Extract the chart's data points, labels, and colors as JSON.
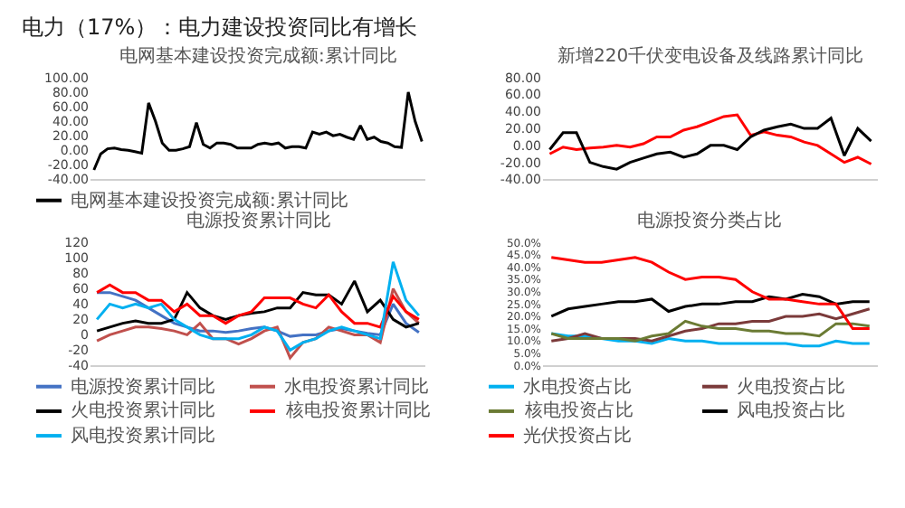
{
  "chart_data": [
    {
      "type": "line",
      "title": "电网基本建设投资完成额:累计同比",
      "annotations": [
        "电力（17%）：电力建设投资同比有增长"
      ],
      "categories": [
        null,
        null,
        null,
        null,
        null,
        null,
        null,
        null,
        null,
        null,
        null,
        null,
        null,
        null,
        null,
        null,
        null,
        null,
        null,
        null,
        null,
        null,
        null,
        null,
        null,
        null,
        null,
        null,
        null,
        null,
        null,
        null,
        null,
        null,
        null,
        null,
        null,
        null,
        null,
        null,
        null,
        null,
        null,
        null,
        null,
        null,
        null,
        null,
        null
      ],
      "series": [
        {
          "name": "电网基本建设投资完成额:累计同比",
          "color": "#000000",
          "values": [
            -27,
            -5,
            2,
            3,
            1,
            0,
            -2,
            -4,
            65,
            40,
            10,
            0,
            0,
            2,
            5,
            38,
            8,
            3,
            10,
            10,
            8,
            3,
            3,
            3,
            8,
            10,
            8,
            10,
            3,
            5,
            5,
            3,
            25,
            22,
            25,
            20,
            22,
            18,
            15,
            34,
            15,
            18,
            12,
            10,
            5,
            4,
            80,
            40,
            12
          ]
        }
      ],
      "ylim": [
        -40,
        100
      ],
      "yticks": [
        {
          "value": -40,
          "label": "-40.00"
        },
        {
          "value": -20,
          "label": "-20.00"
        },
        {
          "value": 0,
          "label": "0.00"
        },
        {
          "value": 20,
          "label": "20.00"
        },
        {
          "value": 40,
          "label": "40.00"
        },
        {
          "value": 60,
          "label": "60.00"
        },
        {
          "value": 80,
          "label": "80.00"
        },
        {
          "value": 100,
          "label": "100.00"
        }
      ],
      "tick_labels": "y",
      "legend": "bottom"
    },
    {
      "type": "line",
      "title": "新增220千伏变电设备及线路累计同比",
      "categories": [
        null,
        null,
        null,
        null,
        null,
        null,
        null,
        null,
        null,
        null,
        null,
        null,
        null,
        null,
        null,
        null,
        null,
        null,
        null,
        null,
        null,
        null,
        null,
        null,
        null
      ],
      "series": [
        {
          "color": "#ff0000",
          "values": [
            -10,
            -2,
            -5,
            -3,
            -2,
            0,
            -2,
            2,
            10,
            10,
            18,
            22,
            28,
            34,
            36,
            12,
            16,
            12,
            10,
            4,
            0,
            -10,
            -20,
            -14,
            -22
          ]
        },
        {
          "color": "#000000",
          "values": [
            -5,
            15,
            15,
            -20,
            -25,
            -28,
            -20,
            -15,
            -10,
            -8,
            -14,
            -10,
            0,
            0,
            -5,
            10,
            18,
            22,
            25,
            20,
            20,
            32,
            -12,
            20,
            5
          ]
        }
      ],
      "ylim": [
        -40,
        80
      ],
      "yticks": [
        {
          "value": -40,
          "label": "-40.00"
        },
        {
          "value": -20,
          "label": "-20.00"
        },
        {
          "value": 0,
          "label": "0.00"
        },
        {
          "value": 20,
          "label": "20.00"
        },
        {
          "value": 40,
          "label": "40.00"
        },
        {
          "value": 60,
          "label": "60.00"
        },
        {
          "value": 80,
          "label": "80.00"
        }
      ],
      "tick_labels": "y"
    },
    {
      "type": "line",
      "title": "电源投资累计同比",
      "categories": [
        null,
        null,
        null,
        null,
        null,
        null,
        null,
        null,
        null,
        null,
        null,
        null,
        null,
        null,
        null,
        null,
        null,
        null,
        null,
        null,
        null,
        null,
        null,
        null,
        null,
        null
      ],
      "series": [
        {
          "name": "电源投资累计同比",
          "color": "#4472c4",
          "values": [
            55,
            55,
            50,
            45,
            35,
            25,
            15,
            10,
            5,
            5,
            3,
            5,
            8,
            10,
            5,
            -2,
            0,
            0,
            5,
            8,
            5,
            2,
            0,
            40,
            15,
            3
          ]
        },
        {
          "name": "水电投资累计同比",
          "color": "#c0504d",
          "values": [
            -8,
            0,
            5,
            10,
            10,
            8,
            5,
            0,
            15,
            -5,
            -5,
            -12,
            -5,
            5,
            10,
            -30,
            -10,
            -5,
            10,
            5,
            0,
            0,
            -10,
            60,
            30,
            15
          ]
        },
        {
          "name": "火电投资累计同比",
          "color": "#000000",
          "values": [
            5,
            10,
            15,
            18,
            15,
            15,
            20,
            55,
            35,
            25,
            20,
            25,
            28,
            30,
            35,
            35,
            55,
            52,
            52,
            40,
            70,
            30,
            45,
            20,
            10,
            15
          ]
        },
        {
          "name": "核电投资累计同比",
          "color": "#ff0000",
          "values": [
            55,
            65,
            55,
            55,
            45,
            45,
            30,
            40,
            25,
            25,
            15,
            25,
            30,
            48,
            48,
            48,
            40,
            35,
            52,
            30,
            15,
            15,
            10,
            50,
            30,
            20
          ]
        },
        {
          "name": "风电投资累计同比",
          "color": "#00b0f0",
          "values": [
            20,
            40,
            35,
            40,
            35,
            40,
            20,
            10,
            0,
            -5,
            -5,
            -5,
            0,
            10,
            5,
            -20,
            -10,
            -5,
            5,
            10,
            5,
            0,
            -5,
            95,
            45,
            25
          ]
        }
      ],
      "ylim": [
        -40,
        120
      ],
      "yticks": [
        -40,
        -20,
        0,
        20,
        40,
        60,
        80,
        100,
        120
      ],
      "tick_labels": "y",
      "legend": "bottom"
    },
    {
      "type": "line",
      "title": "电源投资分类占比",
      "categories": [
        null,
        null,
        null,
        null,
        null,
        null,
        null,
        null,
        null,
        null,
        null,
        null,
        null,
        null,
        null,
        null,
        null,
        null,
        null,
        null
      ],
      "series": [
        {
          "name": "水电投资占比",
          "color": "#00b0f0",
          "values": [
            13,
            12,
            12,
            11,
            10,
            10,
            9,
            11,
            10,
            10,
            9,
            9,
            9,
            9,
            9,
            8,
            8,
            10,
            9,
            9
          ]
        },
        {
          "name": "火电投资占比",
          "color": "#7b3a3a",
          "values": [
            10,
            11,
            13,
            11,
            11,
            11,
            10,
            12,
            14,
            15,
            17,
            17,
            18,
            18,
            20,
            20,
            21,
            19,
            21,
            23
          ]
        },
        {
          "name": "核电投资占比",
          "color": "#6b7b34",
          "values": [
            13,
            11,
            11,
            11,
            11,
            10,
            12,
            13,
            18,
            16,
            15,
            15,
            14,
            14,
            13,
            13,
            12,
            17,
            17,
            16
          ]
        },
        {
          "name": "风电投资占比",
          "color": "#000000",
          "values": [
            20,
            23,
            24,
            25,
            26,
            26,
            27,
            22,
            24,
            25,
            25,
            26,
            26,
            28,
            27,
            29,
            28,
            25,
            26,
            26
          ]
        },
        {
          "name": "光伏投资占比",
          "color": "#ff0000",
          "values": [
            44,
            43,
            42,
            42,
            43,
            44,
            42,
            38,
            35,
            36,
            36,
            35,
            30,
            27,
            27,
            26,
            25,
            25,
            15,
            15
          ]
        }
      ],
      "ylim": [
        0,
        50
      ],
      "yticks": [
        {
          "value": 0,
          "label": "0.0%"
        },
        {
          "value": 5,
          "label": "5.0%"
        },
        {
          "value": 10,
          "label": "10.0%"
        },
        {
          "value": 15,
          "label": "15.0%"
        },
        {
          "value": 20,
          "label": "20.0%"
        },
        {
          "value": 25,
          "label": "25.0%"
        },
        {
          "value": 30,
          "label": "30.0%"
        },
        {
          "value": 35,
          "label": "35.0%"
        },
        {
          "value": 40,
          "label": "40.0%"
        },
        {
          "value": 45,
          "label": "45.0%"
        },
        {
          "value": 50,
          "label": "50.0%"
        }
      ],
      "tick_labels": "y",
      "legend": "bottom"
    }
  ]
}
